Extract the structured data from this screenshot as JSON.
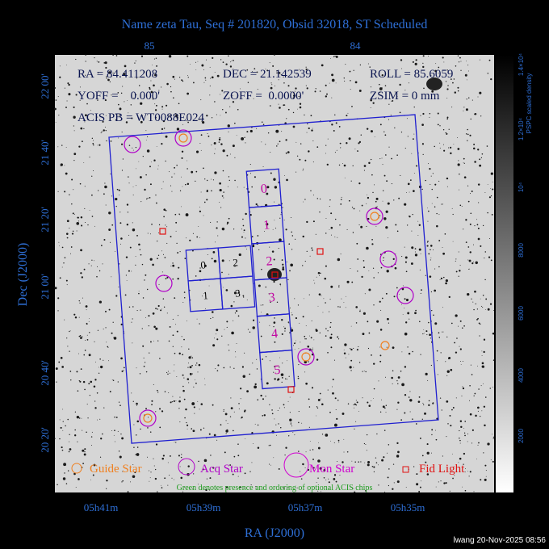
{
  "title": "Name zeta Tau, Seq # 201820, Obsid 32018, ST Scheduled",
  "top_axis": {
    "ticks": [
      "85",
      "84"
    ]
  },
  "parameters": {
    "row1": [
      "RA = 84.411208",
      "DEC = 21.142539",
      "ROLL = 85.6059"
    ],
    "row2": [
      "YOFF =    0.000'",
      "ZOFF =  0.0000'",
      "ZSIM = 0 mm"
    ],
    "row3": [
      "ACIS PB = WT0088E024"
    ]
  },
  "y_axis": {
    "label": "Dec (J2000)",
    "ticks": [
      "22 00'",
      "21 40'",
      "21 20'",
      "21 00'",
      "20 40'",
      "20 20'"
    ]
  },
  "x_axis": {
    "label": "RA (J2000)",
    "ticks": [
      "05h41m",
      "05h39m",
      "05h37m",
      "05h35m"
    ]
  },
  "acis_s_chips": [
    "0",
    "1",
    "2",
    "3",
    "4",
    "5"
  ],
  "acis_i_chips": [
    "0",
    "2",
    "1",
    "3"
  ],
  "legend": [
    "Guide Star",
    "Acq Star",
    "Mon Star",
    "Fid Light"
  ],
  "note": "Green denotes presence and ordering of optional ACIS chips",
  "colorbar": {
    "title": "PSPC scaled density",
    "ticks": [
      "1.4×10⁴",
      "1.2×10⁴",
      "10⁴",
      "8000",
      "6000",
      "4000",
      "2000"
    ]
  },
  "footer": "lwang 20-Nov-2025 08:56"
}
